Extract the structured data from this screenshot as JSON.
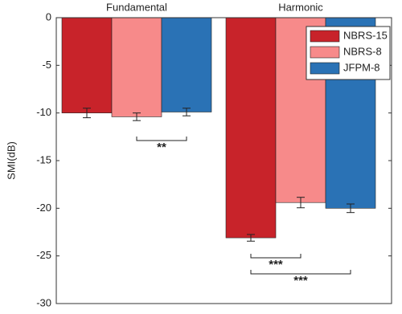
{
  "chart_data": {
    "type": "bar",
    "categories": [
      "Fundamental",
      "Harmonic"
    ],
    "y_label": "SMI(dB)",
    "series": [
      {
        "name": "NBRS-15",
        "color": "#c8232a",
        "values": [
          -10.0,
          -23.1
        ],
        "errors": [
          0.5,
          0.35
        ]
      },
      {
        "name": "NBRS-8",
        "color": "#f78a8a",
        "values": [
          -10.4,
          -19.4
        ],
        "errors": [
          0.4,
          0.55
        ]
      },
      {
        "name": "JFPM-8",
        "color": "#2a72b5",
        "values": [
          -9.9,
          -20.0
        ],
        "errors": [
          0.4,
          0.45
        ]
      }
    ],
    "ylim": [
      -30,
      0
    ],
    "yticks": [
      -30,
      -25,
      -20,
      -15,
      -10,
      -5,
      0
    ],
    "legend": "top-right",
    "annotations": [
      "**",
      "***",
      "***"
    ]
  }
}
